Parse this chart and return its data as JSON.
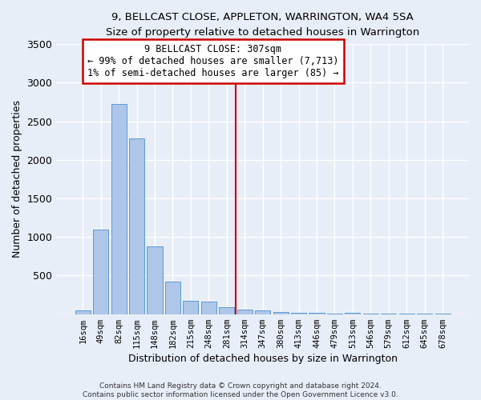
{
  "title": "9, BELLCAST CLOSE, APPLETON, WARRINGTON, WA4 5SA",
  "subtitle": "Size of property relative to detached houses in Warrington",
  "xlabel": "Distribution of detached houses by size in Warrington",
  "ylabel": "Number of detached properties",
  "bar_labels": [
    "16sqm",
    "49sqm",
    "82sqm",
    "115sqm",
    "148sqm",
    "182sqm",
    "215sqm",
    "248sqm",
    "281sqm",
    "314sqm",
    "347sqm",
    "380sqm",
    "413sqm",
    "446sqm",
    "479sqm",
    "513sqm",
    "546sqm",
    "579sqm",
    "612sqm",
    "645sqm",
    "678sqm"
  ],
  "bar_values": [
    50,
    1100,
    2720,
    2280,
    880,
    420,
    170,
    160,
    90,
    55,
    45,
    30,
    20,
    15,
    10,
    20,
    5,
    5,
    5,
    5,
    5
  ],
  "bar_color": "#aec6e8",
  "bar_edge_color": "#5b9bd5",
  "vline_bin_index": 9,
  "property_line_label": "9 BELLCAST CLOSE: 307sqm",
  "annotation_line1": "← 99% of detached houses are smaller (7,713)",
  "annotation_line2": "1% of semi-detached houses are larger (85) →",
  "vline_color": "#cc0000",
  "annotation_box_edge": "#cc0000",
  "ylim": [
    0,
    3500
  ],
  "yticks": [
    0,
    500,
    1000,
    1500,
    2000,
    2500,
    3000,
    3500
  ],
  "background_color": "#e8eef8",
  "grid_color": "#ffffff",
  "title_fontsize": 10,
  "subtitle_fontsize": 9,
  "footer_line1": "Contains HM Land Registry data © Crown copyright and database right 2024.",
  "footer_line2": "Contains public sector information licensed under the Open Government Licence v3.0."
}
